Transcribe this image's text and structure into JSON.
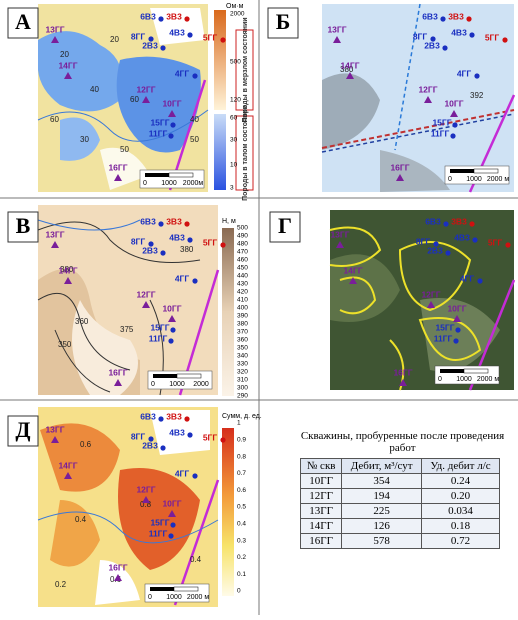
{
  "panels": [
    {
      "letter": "А",
      "scale": [
        "0",
        "1000",
        "2000м"
      ],
      "contours": [
        "20",
        "40",
        "60",
        "50",
        "50",
        "20",
        "30",
        "40",
        "60"
      ],
      "legend": {
        "title": "Ом·м",
        "ticks": [
          "2000",
          "500",
          "120",
          "60",
          "30",
          "10",
          "3"
        ],
        "frozen": "Породы в мерзлом состоянии",
        "thawed": "Породы в талом состоянии"
      }
    },
    {
      "letter": "Б",
      "scale": [
        "0",
        "1000",
        "2000 м"
      ],
      "contours": [
        "380",
        "392"
      ]
    },
    {
      "letter": "В",
      "scale": [
        "0",
        "1000",
        "2000"
      ],
      "contours": [
        "380",
        "375",
        "360",
        "350",
        "390",
        "380"
      ],
      "legend": {
        "title": "Н, м",
        "ticks": [
          "500",
          "490",
          "480",
          "470",
          "460",
          "450",
          "440",
          "430",
          "420",
          "410",
          "400",
          "390",
          "380",
          "370",
          "360",
          "350",
          "340",
          "330",
          "320",
          "310",
          "300",
          "290"
        ]
      }
    },
    {
      "letter": "Г",
      "scale": [
        "0",
        "1000",
        "2000 м"
      ],
      "contours": []
    },
    {
      "letter": "Д",
      "scale": [
        "0",
        "1000",
        "2000 м"
      ],
      "contours": [
        "0.6",
        "0.4",
        "0.2",
        "0.8",
        "0.6",
        "0.4",
        "0.2"
      ],
      "legend": {
        "title": "Сумм, д. ед.",
        "ticks": [
          "1",
          "0.9",
          "0.8",
          "0.7",
          "0.6",
          "0.5",
          "0.4",
          "0.3",
          "0.2",
          "0.1",
          "0"
        ]
      }
    }
  ],
  "wells": [
    {
      "label": "6В3",
      "color": "#1a2fc0",
      "marker": "dot"
    },
    {
      "label": "3В3",
      "color": "#d01010",
      "marker": "dot"
    },
    {
      "label": "13ГГ",
      "color": "#7a1e9a",
      "marker": "triangle"
    },
    {
      "label": "8ГГ",
      "color": "#1a2fc0",
      "marker": "dot"
    },
    {
      "label": "4В3",
      "color": "#1a2fc0",
      "marker": "dot"
    },
    {
      "label": "2В3",
      "color": "#1a2fc0",
      "marker": "dot"
    },
    {
      "label": "5ГГ",
      "color": "#d01010",
      "marker": "dot"
    },
    {
      "label": "14ГГ",
      "color": "#7a1e9a",
      "marker": "triangle"
    },
    {
      "label": "4ГГ",
      "color": "#1a2fc0",
      "marker": "dot"
    },
    {
      "label": "12ГГ",
      "color": "#7a1e9a",
      "marker": "triangle"
    },
    {
      "label": "10ГГ",
      "color": "#7a1e9a",
      "marker": "triangle"
    },
    {
      "label": "15ГГ",
      "color": "#1a2fc0",
      "marker": "dot"
    },
    {
      "label": "11ГГ",
      "color": "#1a2fc0",
      "marker": "dot"
    },
    {
      "label": "16ГГ",
      "color": "#7a1e9a",
      "marker": "triangle"
    }
  ],
  "table": {
    "title": "Скважины, пробуренные после проведения работ",
    "header": [
      "№ скв",
      "Дебит, м³/сут",
      "Уд. дебит л/с"
    ],
    "rows": [
      [
        "10ГГ",
        "354",
        "0.24"
      ],
      [
        "12ГГ",
        "194",
        "0.20"
      ],
      [
        "13ГГ",
        "225",
        "0.034"
      ],
      [
        "14ГГ",
        "126",
        "0.18"
      ],
      [
        "16ГГ",
        "578",
        "0.72"
      ]
    ]
  }
}
